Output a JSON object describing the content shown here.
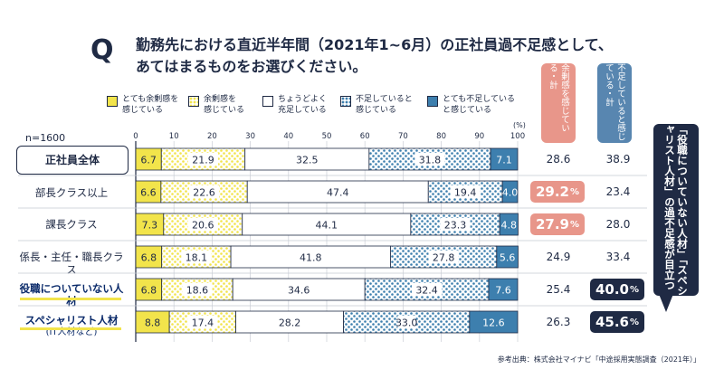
{
  "title": {
    "q_mark": "Q",
    "line1": "勤務先における直近半年間（2021年1~6月）の正社員過不足感として、",
    "line2": "あてはまるものをお選びください。"
  },
  "n_label": "n=1600",
  "percent_unit": "(%)",
  "legend": [
    {
      "label": "とても余剰感を\n感じている",
      "pattern": "solid-yellow"
    },
    {
      "label": "余剰感を\n感じている",
      "pattern": "dotted-yellow"
    },
    {
      "label": "ちょうどよく\n充足している",
      "pattern": "white"
    },
    {
      "label": "不足していると\n感じている",
      "pattern": "dotted-blue"
    },
    {
      "label": "とても不足している\nと感じている",
      "pattern": "solid-blue"
    }
  ],
  "columns": {
    "surplus_header": "余剰感を感じている・計",
    "shortage_header": "不足していると感じている・計"
  },
  "colors": {
    "navy": "#1f2a44",
    "yellow": "#f2e44b",
    "blue": "#3d7fae",
    "salmon": "#e8968a",
    "steel": "#5886b0"
  },
  "chart_data": {
    "type": "bar",
    "orientation": "horizontal-stacked-100",
    "categories": [
      "正社員全体",
      "部長クラス以上",
      "課長クラス",
      "係長・主任・職長クラス",
      "役職についていない人材",
      "スペシャリスト人材"
    ],
    "category_subs": [
      "",
      "",
      "",
      "",
      "",
      "(IT人材など)"
    ],
    "xlim": [
      0,
      100
    ],
    "xticks": [
      0,
      10,
      20,
      30,
      40,
      50,
      60,
      70,
      80,
      90,
      100
    ],
    "series": [
      {
        "name": "とても余剰感を感じている",
        "values": [
          6.7,
          6.6,
          7.3,
          6.8,
          6.8,
          8.8
        ]
      },
      {
        "name": "余剰感を感じている",
        "values": [
          21.9,
          22.6,
          20.6,
          18.1,
          18.6,
          17.4
        ]
      },
      {
        "name": "ちょうどよく充足している",
        "values": [
          32.5,
          47.4,
          44.1,
          41.8,
          34.6,
          28.2
        ]
      },
      {
        "name": "不足していると感じている",
        "values": [
          31.8,
          19.4,
          23.3,
          27.8,
          32.4,
          33.0
        ]
      },
      {
        "name": "とても不足していると感じている",
        "values": [
          7.1,
          4.0,
          4.8,
          5.6,
          7.6,
          12.6
        ]
      }
    ],
    "surplus_total": [
      "28.6",
      "29.2",
      "27.9",
      "24.9",
      "25.4",
      "26.3"
    ],
    "shortage_total": [
      "38.9",
      "23.4",
      "28.0",
      "33.4",
      "40.0",
      "45.6"
    ],
    "surplus_highlight": [
      false,
      true,
      true,
      false,
      false,
      false
    ],
    "shortage_highlight": [
      false,
      false,
      false,
      false,
      true,
      true
    ],
    "highlight_unit": "%"
  },
  "callout": "「役職についていない人材」「スペシャリスト人材」の過不足感が目立つ",
  "source": "参考出典：株式会社マイナビ「中途採用実態調査（2021年）」"
}
